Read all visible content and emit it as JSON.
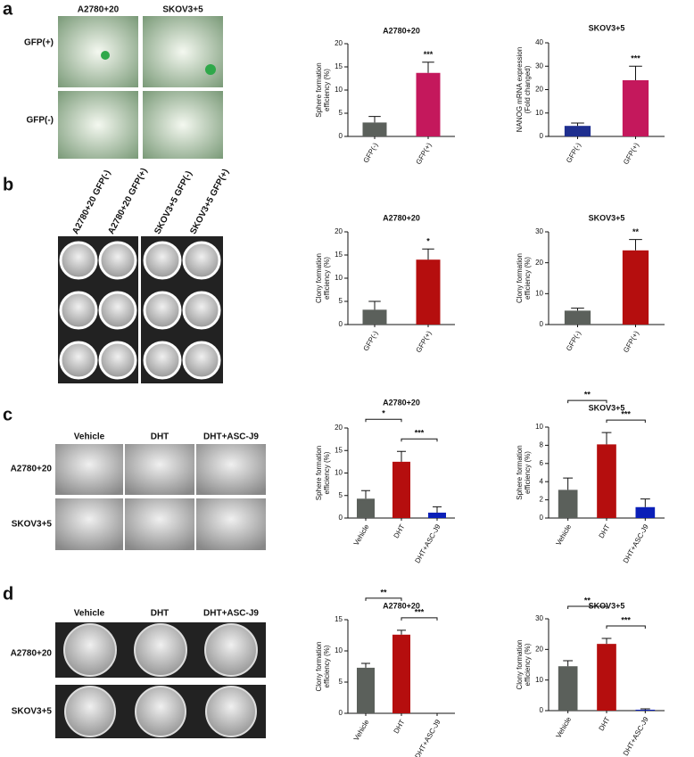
{
  "panel_labels": [
    "a",
    "b",
    "c",
    "d"
  ],
  "images": {
    "a": {
      "columns": [
        "A2780+20",
        "SKOV3+5"
      ],
      "rows": [
        "GFP(+)",
        "GFP(-)"
      ]
    },
    "b": {
      "columns": [
        "A2780+20 GFP(-)",
        "A2780+20 GFP(+)",
        "SKOV3+5 GFP(-)",
        "SKOV3+5 GFP(+)"
      ]
    },
    "c": {
      "columns": [
        "Vehicle",
        "DHT",
        "DHT+ASC-J9"
      ],
      "rows": [
        "A2780+20",
        "SKOV3+5"
      ]
    },
    "d": {
      "columns": [
        "Vehicle",
        "DHT",
        "DHT+ASC-J9"
      ],
      "rows": [
        "A2780+20",
        "SKOV3+5"
      ]
    }
  },
  "chart_data": [
    {
      "type": "bar",
      "title": "A2780+20",
      "ylabel": [
        "Sphere formation",
        "efficiency (%)"
      ],
      "categories": [
        "GFP(-)",
        "GFP(+)"
      ],
      "values": [
        3,
        13.7
      ],
      "errors": [
        1.3,
        2.3
      ],
      "colors": [
        "#5b605b",
        "#c4185c"
      ],
      "ylim": [
        0,
        20
      ],
      "yticks": [
        0,
        5,
        10,
        15,
        20
      ],
      "stars": [
        null,
        "***"
      ]
    },
    {
      "type": "bar",
      "title": "SKOV3+5",
      "ylabel": [
        "NANOG mRNA expression",
        "(Fold changed)"
      ],
      "categories": [
        "GFP(-)",
        "GFP(+)"
      ],
      "values": [
        4.5,
        24
      ],
      "errors": [
        1.2,
        6
      ],
      "colors": [
        "#1f2f8f",
        "#c4185c"
      ],
      "ylim": [
        0,
        40
      ],
      "yticks": [
        0,
        10,
        20,
        30,
        40
      ],
      "stars": [
        null,
        "***"
      ]
    },
    {
      "type": "bar",
      "title": "A2780+20",
      "ylabel": [
        "Clony formation",
        "efficiency (%)"
      ],
      "categories": [
        "GFP(-)",
        "GFP(+)"
      ],
      "values": [
        3.2,
        14
      ],
      "errors": [
        1.8,
        2.3
      ],
      "colors": [
        "#5b605b",
        "#b50e0e"
      ],
      "ylim": [
        0,
        20
      ],
      "yticks": [
        0,
        5,
        10,
        15,
        20
      ],
      "stars": [
        null,
        "*"
      ]
    },
    {
      "type": "bar",
      "title": "SKOV3+5",
      "ylabel": [
        "Clony formation",
        "efficiency (%)"
      ],
      "categories": [
        "GFP(-)",
        "GFP(+)"
      ],
      "values": [
        4.5,
        24
      ],
      "errors": [
        0.8,
        3.5
      ],
      "colors": [
        "#5b605b",
        "#b50e0e"
      ],
      "ylim": [
        0,
        30
      ],
      "yticks": [
        0,
        10,
        20,
        30
      ],
      "stars": [
        null,
        "**"
      ]
    },
    {
      "type": "bar",
      "title": "A2780+20",
      "ylabel": [
        "Sphere formation",
        "efficiency (%)"
      ],
      "categories": [
        "Vehicle",
        "DHT",
        "DHT+ASC-J9"
      ],
      "values": [
        4.3,
        12.5,
        1.2
      ],
      "errors": [
        1.8,
        2.3,
        1.3
      ],
      "colors": [
        "#5b605b",
        "#b50e0e",
        "#0a1fb8"
      ],
      "ylim": [
        0,
        20
      ],
      "yticks": [
        0,
        5,
        10,
        15,
        20
      ],
      "comparisons": [
        {
          "from": "Vehicle",
          "to": "DHT",
          "text": "*"
        },
        {
          "from": "DHT",
          "to": "DHT+ASC-J9",
          "text": "***"
        }
      ]
    },
    {
      "type": "bar",
      "title": "SKOV3+5",
      "ylabel": [
        "Sphere formation",
        "efficiency (%)"
      ],
      "categories": [
        "Vehicle",
        "DHT",
        "DHT+ASC-J9"
      ],
      "values": [
        3.1,
        8.1,
        1.2
      ],
      "errors": [
        1.3,
        1.3,
        0.9
      ],
      "colors": [
        "#5b605b",
        "#b50e0e",
        "#0a1fb8"
      ],
      "ylim": [
        0,
        10
      ],
      "yticks": [
        0,
        2,
        4,
        6,
        8,
        10
      ],
      "comparisons": [
        {
          "from": "Vehicle",
          "to": "DHT",
          "text": "**"
        },
        {
          "from": "DHT",
          "to": "DHT+ASC-J9",
          "text": "***"
        }
      ]
    },
    {
      "type": "bar",
      "title": "A2780+20",
      "ylabel": [
        "Clony formation",
        "efficiency (%)"
      ],
      "categories": [
        "Vehicle",
        "DHT",
        "DHT+ASC-J9"
      ],
      "values": [
        7.3,
        12.6,
        0
      ],
      "errors": [
        0.7,
        0.7,
        0
      ],
      "colors": [
        "#5b605b",
        "#b50e0e",
        "#0a1fb8"
      ],
      "ylim": [
        0,
        15
      ],
      "yticks": [
        0,
        5,
        10,
        15
      ],
      "comparisons": [
        {
          "from": "Vehicle",
          "to": "DHT",
          "text": "**"
        },
        {
          "from": "DHT",
          "to": "DHT+ASC-J9",
          "text": "***"
        }
      ]
    },
    {
      "type": "bar",
      "title": "SKOV3+5",
      "ylabel": [
        "Clony formation",
        "efficiency (%)"
      ],
      "categories": [
        "Vehicle",
        "DHT",
        "DHT+ASC-J9"
      ],
      "values": [
        14.5,
        21.8,
        0.3
      ],
      "errors": [
        1.8,
        1.8,
        0.3
      ],
      "colors": [
        "#5b605b",
        "#b50e0e",
        "#0a1fb8"
      ],
      "ylim": [
        0,
        30
      ],
      "yticks": [
        0,
        10,
        20,
        30
      ],
      "comparisons": [
        {
          "from": "Vehicle",
          "to": "DHT",
          "text": "**"
        },
        {
          "from": "DHT",
          "to": "DHT+ASC-J9",
          "text": "***"
        }
      ]
    }
  ]
}
